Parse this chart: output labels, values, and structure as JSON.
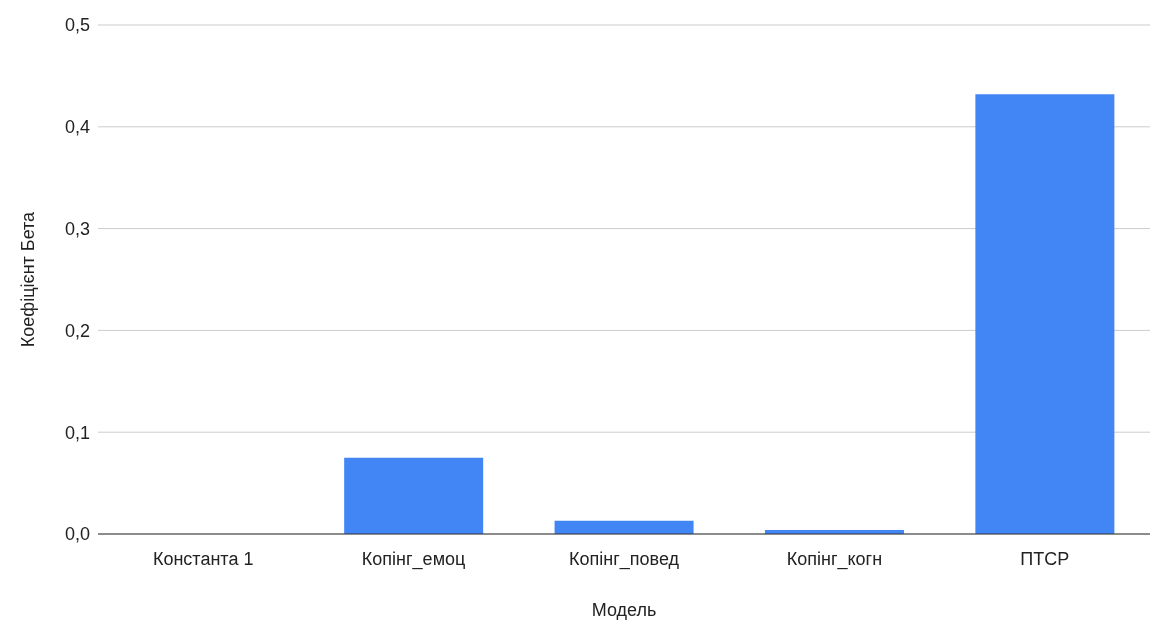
{
  "chart_data": {
    "type": "bar",
    "xlabel": "Модель",
    "ylabel": "Коефіцієнт Бета",
    "categories": [
      "Константа 1",
      "Копінг_емоц",
      "Копінг_повед",
      "Копінг_когн",
      "ПТСР"
    ],
    "values": [
      0,
      0.075,
      0.013,
      0.004,
      0.432
    ],
    "color": "#4285f4",
    "ylim": [
      0,
      0.5
    ],
    "yticks": [
      {
        "value": 0,
        "label": "0,0"
      },
      {
        "value": 0.1,
        "label": "0,1"
      },
      {
        "value": 0.2,
        "label": "0,2"
      },
      {
        "value": 0.3,
        "label": "0,3"
      },
      {
        "value": 0.4,
        "label": "0,4"
      },
      {
        "value": 0.5,
        "label": "0,5"
      }
    ],
    "grid": "y"
  }
}
